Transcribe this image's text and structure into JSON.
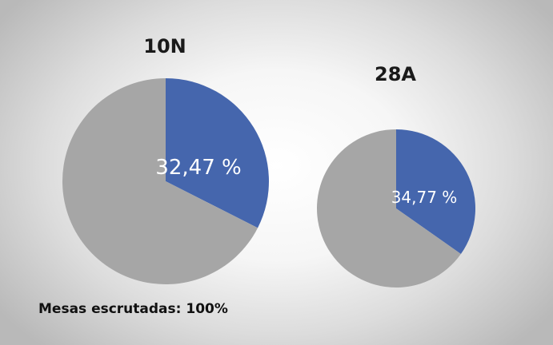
{
  "colors": {
    "highlight": "#4566ad",
    "rest": "#a6a6a6",
    "label": "#ffffff",
    "title": "#1a1a1a"
  },
  "chart_data": [
    {
      "type": "pie",
      "title": "10N",
      "slices": [
        {
          "label": "32,47 %",
          "value": 32.47,
          "color": "#4566ad"
        },
        {
          "label": "",
          "value": 67.53,
          "color": "#a6a6a6"
        }
      ]
    },
    {
      "type": "pie",
      "title": "28A",
      "slices": [
        {
          "label": "34,77 %",
          "value": 34.77,
          "color": "#4566ad"
        },
        {
          "label": "",
          "value": 65.23,
          "color": "#a6a6a6"
        }
      ]
    }
  ],
  "footnote": "Mesas escrutadas: 100%"
}
